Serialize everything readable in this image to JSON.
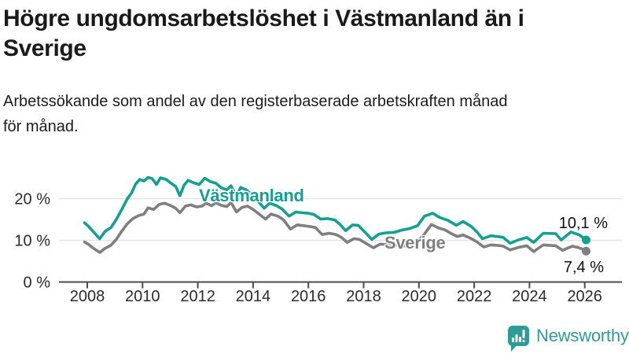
{
  "title": {
    "lines": [
      "Högre ungdomsarbetslöshet i Västmanland än i",
      "Sverige"
    ]
  },
  "subtitle": {
    "lines": [
      "Arbetssökande som andel av den registerbaserade arbetskraften månad",
      "för månad."
    ]
  },
  "chart_data": {
    "type": "line",
    "unit": "%",
    "x_axis": {
      "tick_years": [
        2008,
        2010,
        2012,
        2014,
        2016,
        2018,
        2020,
        2022,
        2024,
        2026
      ],
      "range": [
        2007.0,
        2027.4
      ]
    },
    "y_axis": {
      "ticks": [
        {
          "value": 0,
          "label": "0 %"
        },
        {
          "value": 10,
          "label": "10 %"
        },
        {
          "value": 20,
          "label": "20 %"
        }
      ],
      "range": [
        0,
        27
      ]
    },
    "grid": "horizontal",
    "legend": "inline-labels",
    "series": [
      {
        "name": "Västmanland",
        "color": "#12a091",
        "end_label": "10,1 %",
        "end_value": 10.1,
        "points": [
          [
            2007.9,
            14.2
          ],
          [
            2008.05,
            13.3
          ],
          [
            2008.2,
            12.2
          ],
          [
            2008.45,
            10.4
          ],
          [
            2008.65,
            12.2
          ],
          [
            2008.85,
            13.0
          ],
          [
            2009.05,
            15.0
          ],
          [
            2009.25,
            17.4
          ],
          [
            2009.45,
            20.0
          ],
          [
            2009.6,
            21.3
          ],
          [
            2009.75,
            23.5
          ],
          [
            2009.9,
            24.6
          ],
          [
            2010.05,
            24.2
          ],
          [
            2010.2,
            25.1
          ],
          [
            2010.35,
            24.8
          ],
          [
            2010.5,
            23.4
          ],
          [
            2010.65,
            25.0
          ],
          [
            2010.85,
            24.6
          ],
          [
            2011.05,
            23.6
          ],
          [
            2011.2,
            22.9
          ],
          [
            2011.35,
            20.7
          ],
          [
            2011.5,
            23.2
          ],
          [
            2011.65,
            24.4
          ],
          [
            2011.85,
            23.8
          ],
          [
            2012.05,
            23.4
          ],
          [
            2012.25,
            24.9
          ],
          [
            2012.45,
            24.1
          ],
          [
            2012.65,
            23.7
          ],
          [
            2012.85,
            22.6
          ],
          [
            2013.05,
            22.1
          ],
          [
            2013.2,
            23.1
          ],
          [
            2013.4,
            20.6
          ],
          [
            2013.55,
            22.7
          ],
          [
            2013.75,
            22.1
          ],
          [
            2013.95,
            21.0
          ],
          [
            2014.15,
            19.6
          ],
          [
            2014.4,
            17.7
          ],
          [
            2014.6,
            18.9
          ],
          [
            2014.85,
            18.3
          ],
          [
            2015.05,
            17.5
          ],
          [
            2015.3,
            15.8
          ],
          [
            2015.55,
            16.8
          ],
          [
            2015.8,
            16.6
          ],
          [
            2016.0,
            16.5
          ],
          [
            2016.2,
            16.2
          ],
          [
            2016.45,
            15.1
          ],
          [
            2016.7,
            15.2
          ],
          [
            2016.95,
            14.9
          ],
          [
            2017.15,
            13.8
          ],
          [
            2017.35,
            12.3
          ],
          [
            2017.6,
            13.7
          ],
          [
            2017.8,
            13.6
          ],
          [
            2018.0,
            12.3
          ],
          [
            2018.3,
            10.2
          ],
          [
            2018.55,
            11.5
          ],
          [
            2018.8,
            11.8
          ],
          [
            2019.1,
            11.9
          ],
          [
            2019.4,
            12.5
          ],
          [
            2019.65,
            12.8
          ],
          [
            2019.95,
            13.5
          ],
          [
            2020.2,
            15.8
          ],
          [
            2020.5,
            16.5
          ],
          [
            2020.75,
            15.5
          ],
          [
            2021.05,
            14.8
          ],
          [
            2021.35,
            13.6
          ],
          [
            2021.6,
            14.5
          ],
          [
            2021.9,
            13.3
          ],
          [
            2022.1,
            12.0
          ],
          [
            2022.3,
            10.4
          ],
          [
            2022.6,
            11.1
          ],
          [
            2022.85,
            10.9
          ],
          [
            2023.05,
            10.7
          ],
          [
            2023.3,
            9.3
          ],
          [
            2023.6,
            10.1
          ],
          [
            2023.9,
            10.7
          ],
          [
            2024.15,
            9.5
          ],
          [
            2024.5,
            11.7
          ],
          [
            2024.95,
            11.6
          ],
          [
            2025.15,
            10.1
          ],
          [
            2025.5,
            12.0
          ],
          [
            2025.8,
            11.3
          ],
          [
            2026.05,
            10.1
          ]
        ]
      },
      {
        "name": "Sverige",
        "color": "#7f7f7f",
        "end_label": "7,4 %",
        "end_value": 7.4,
        "points": [
          [
            2007.9,
            9.6
          ],
          [
            2008.05,
            9.0
          ],
          [
            2008.2,
            8.2
          ],
          [
            2008.45,
            7.1
          ],
          [
            2008.65,
            8.1
          ],
          [
            2008.85,
            8.8
          ],
          [
            2009.05,
            10.2
          ],
          [
            2009.25,
            12.2
          ],
          [
            2009.45,
            14.0
          ],
          [
            2009.65,
            15.2
          ],
          [
            2009.85,
            15.9
          ],
          [
            2010.05,
            16.3
          ],
          [
            2010.2,
            17.8
          ],
          [
            2010.4,
            17.4
          ],
          [
            2010.6,
            18.6
          ],
          [
            2010.8,
            18.9
          ],
          [
            2011.0,
            18.4
          ],
          [
            2011.2,
            17.7
          ],
          [
            2011.35,
            16.6
          ],
          [
            2011.55,
            18.2
          ],
          [
            2011.75,
            18.5
          ],
          [
            2011.95,
            18.0
          ],
          [
            2012.15,
            18.2
          ],
          [
            2012.3,
            18.9
          ],
          [
            2012.5,
            18.3
          ],
          [
            2012.65,
            19.0
          ],
          [
            2012.85,
            18.4
          ],
          [
            2013.05,
            18.1
          ],
          [
            2013.2,
            19.1
          ],
          [
            2013.4,
            16.8
          ],
          [
            2013.6,
            17.9
          ],
          [
            2013.8,
            18.2
          ],
          [
            2014.0,
            17.4
          ],
          [
            2014.2,
            16.4
          ],
          [
            2014.45,
            15.1
          ],
          [
            2014.65,
            16.3
          ],
          [
            2014.9,
            15.8
          ],
          [
            2015.1,
            14.9
          ],
          [
            2015.35,
            12.7
          ],
          [
            2015.6,
            13.7
          ],
          [
            2015.85,
            13.5
          ],
          [
            2016.05,
            13.3
          ],
          [
            2016.25,
            13.1
          ],
          [
            2016.5,
            11.4
          ],
          [
            2016.75,
            11.7
          ],
          [
            2017.0,
            11.4
          ],
          [
            2017.2,
            10.7
          ],
          [
            2017.4,
            9.5
          ],
          [
            2017.65,
            10.4
          ],
          [
            2017.85,
            10.2
          ],
          [
            2018.05,
            9.4
          ],
          [
            2018.35,
            8.2
          ],
          [
            2018.6,
            9.1
          ],
          [
            2018.85,
            9.0
          ],
          [
            2019.15,
            8.9
          ],
          [
            2019.45,
            8.6
          ],
          [
            2019.7,
            9.0
          ],
          [
            2019.95,
            9.7
          ],
          [
            2020.2,
            11.5
          ],
          [
            2020.45,
            13.8
          ],
          [
            2020.7,
            13.0
          ],
          [
            2020.95,
            12.5
          ],
          [
            2021.15,
            11.7
          ],
          [
            2021.4,
            10.9
          ],
          [
            2021.6,
            11.3
          ],
          [
            2021.9,
            10.4
          ],
          [
            2022.1,
            9.6
          ],
          [
            2022.35,
            8.4
          ],
          [
            2022.6,
            8.9
          ],
          [
            2022.85,
            8.8
          ],
          [
            2023.05,
            8.6
          ],
          [
            2023.3,
            7.7
          ],
          [
            2023.6,
            8.3
          ],
          [
            2023.9,
            8.7
          ],
          [
            2024.15,
            7.3
          ],
          [
            2024.5,
            8.9
          ],
          [
            2024.75,
            8.8
          ],
          [
            2024.95,
            8.7
          ],
          [
            2025.2,
            7.6
          ],
          [
            2025.55,
            8.6
          ],
          [
            2025.75,
            8.3
          ],
          [
            2025.95,
            7.8
          ],
          [
            2026.05,
            7.4
          ]
        ]
      }
    ]
  },
  "footer": {
    "brand": "Newsworthy"
  },
  "colors": {
    "vastmanland": "#12a091",
    "sverige": "#7f7f7f",
    "axis": "#4d4d4d",
    "grid": "#e3e3e3",
    "tick_text": "#2b2b2b",
    "brand": "#2e9c94",
    "title_text": "#1a1a1a"
  }
}
